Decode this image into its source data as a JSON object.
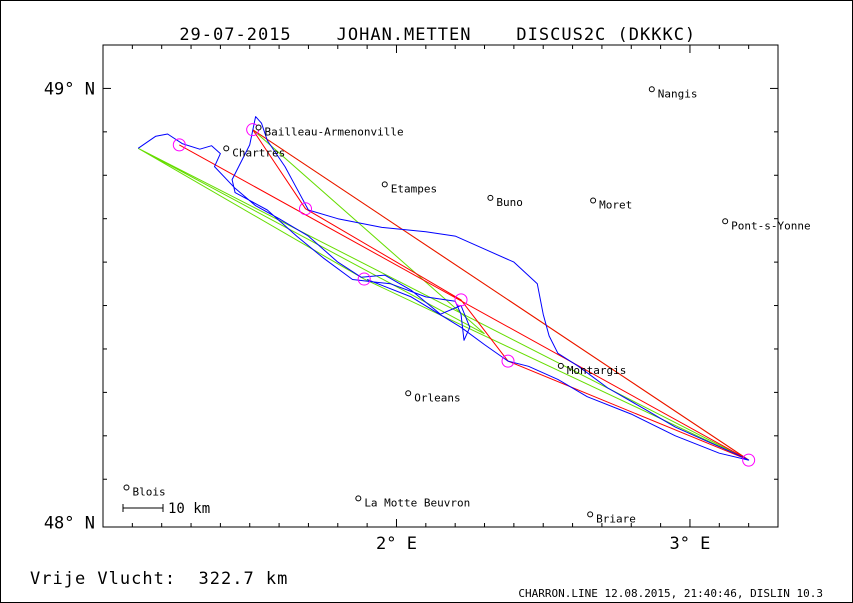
{
  "header": {
    "date": "29-07-2015",
    "pilot": "JOHAN.METTEN",
    "glider": "DISCUS2C (DKKKC)"
  },
  "footer": {
    "result": "Vrije Vlucht:  322.7 km",
    "software": "CHARRON.LINE 12.08.2015, 21:40:46, DISLIN 10.3"
  },
  "axes": {
    "lat_labels": [
      {
        "value": 49,
        "text": "49° N"
      },
      {
        "value": 48,
        "text": "48° N"
      }
    ],
    "lon_labels": [
      {
        "value": 2,
        "text": "2° E"
      },
      {
        "value": 3,
        "text": "3° E"
      }
    ],
    "lon_range": [
      1.0,
      3.3
    ],
    "lat_range": [
      47.99,
      49.1
    ]
  },
  "scale_bar": {
    "label": "10 km"
  },
  "towns": [
    {
      "name": "Nangis",
      "lon": 2.87,
      "lat": 48.998
    },
    {
      "name": "Bailleau-Armenonville",
      "lon": 1.53,
      "lat": 48.91
    },
    {
      "name": "Chartres",
      "lon": 1.42,
      "lat": 48.862
    },
    {
      "name": "Etampes",
      "lon": 1.96,
      "lat": 48.779
    },
    {
      "name": "Buno",
      "lon": 2.32,
      "lat": 48.748
    },
    {
      "name": "Moret",
      "lon": 2.67,
      "lat": 48.742
    },
    {
      "name": "Pont-s-Yonne",
      "lon": 3.12,
      "lat": 48.694
    },
    {
      "name": "Montargis",
      "lon": 2.56,
      "lat": 48.361
    },
    {
      "name": "Orleans",
      "lon": 2.04,
      "lat": 48.298
    },
    {
      "name": "Blois",
      "lon": 1.08,
      "lat": 48.081
    },
    {
      "name": "La Motte Beuvron",
      "lon": 1.87,
      "lat": 48.056
    },
    {
      "name": "Briare",
      "lon": 2.66,
      "lat": 48.019
    }
  ],
  "turnpoints": [
    {
      "lon": 1.26,
      "lat": 48.87
    },
    {
      "lon": 1.51,
      "lat": 48.905
    },
    {
      "lon": 1.69,
      "lat": 48.723
    },
    {
      "lon": 1.89,
      "lat": 48.561
    },
    {
      "lon": 2.22,
      "lat": 48.513
    },
    {
      "lon": 2.38,
      "lat": 48.372
    },
    {
      "lon": 3.2,
      "lat": 48.144
    }
  ],
  "task_red": [
    {
      "lon": 1.26,
      "lat": 48.87
    },
    {
      "lon": 3.2,
      "lat": 48.144
    },
    {
      "lon": 1.51,
      "lat": 48.905
    },
    {
      "lon": 1.69,
      "lat": 48.723
    },
    {
      "lon": 2.22,
      "lat": 48.513
    },
    {
      "lon": 2.38,
      "lat": 48.372
    },
    {
      "lon": 3.2,
      "lat": 48.144
    }
  ],
  "task_green": [
    {
      "lon": 1.12,
      "lat": 48.862
    },
    {
      "lon": 1.89,
      "lat": 48.561
    },
    {
      "lon": 3.2,
      "lat": 48.144
    },
    {
      "lon": 1.51,
      "lat": 48.905
    },
    {
      "lon": 2.3,
      "lat": 48.435
    },
    {
      "lon": 1.12,
      "lat": 48.862
    },
    {
      "lon": 3.2,
      "lat": 48.144
    }
  ],
  "track": [
    {
      "lon": 1.12,
      "lat": 48.862
    },
    {
      "lon": 1.18,
      "lat": 48.89
    },
    {
      "lon": 1.22,
      "lat": 48.895
    },
    {
      "lon": 1.27,
      "lat": 48.873
    },
    {
      "lon": 1.33,
      "lat": 48.86
    },
    {
      "lon": 1.37,
      "lat": 48.868
    },
    {
      "lon": 1.4,
      "lat": 48.85
    },
    {
      "lon": 1.38,
      "lat": 48.82
    },
    {
      "lon": 1.45,
      "lat": 48.77
    },
    {
      "lon": 1.52,
      "lat": 48.73
    },
    {
      "lon": 1.6,
      "lat": 48.7
    },
    {
      "lon": 1.7,
      "lat": 48.66
    },
    {
      "lon": 1.8,
      "lat": 48.6
    },
    {
      "lon": 1.88,
      "lat": 48.565
    },
    {
      "lon": 1.96,
      "lat": 48.57
    },
    {
      "lon": 2.05,
      "lat": 48.535
    },
    {
      "lon": 2.15,
      "lat": 48.48
    },
    {
      "lon": 2.22,
      "lat": 48.5
    },
    {
      "lon": 2.25,
      "lat": 48.45
    },
    {
      "lon": 2.23,
      "lat": 48.42
    },
    {
      "lon": 2.22,
      "lat": 48.48
    },
    {
      "lon": 2.2,
      "lat": 48.51
    },
    {
      "lon": 2.1,
      "lat": 48.52
    },
    {
      "lon": 1.98,
      "lat": 48.55
    },
    {
      "lon": 1.85,
      "lat": 48.56
    },
    {
      "lon": 1.75,
      "lat": 48.61
    },
    {
      "lon": 1.66,
      "lat": 48.66
    },
    {
      "lon": 1.56,
      "lat": 48.72
    },
    {
      "lon": 1.45,
      "lat": 48.76
    },
    {
      "lon": 1.44,
      "lat": 48.79
    },
    {
      "lon": 1.5,
      "lat": 48.87
    },
    {
      "lon": 1.52,
      "lat": 48.935
    },
    {
      "lon": 1.54,
      "lat": 48.92
    },
    {
      "lon": 1.56,
      "lat": 48.88
    },
    {
      "lon": 1.62,
      "lat": 48.82
    },
    {
      "lon": 1.66,
      "lat": 48.77
    },
    {
      "lon": 1.7,
      "lat": 48.72
    },
    {
      "lon": 1.8,
      "lat": 48.7
    },
    {
      "lon": 1.95,
      "lat": 48.68
    },
    {
      "lon": 2.1,
      "lat": 48.67
    },
    {
      "lon": 2.2,
      "lat": 48.66
    },
    {
      "lon": 2.3,
      "lat": 48.63
    },
    {
      "lon": 2.4,
      "lat": 48.6
    },
    {
      "lon": 2.48,
      "lat": 48.55
    },
    {
      "lon": 2.5,
      "lat": 48.48
    },
    {
      "lon": 2.52,
      "lat": 48.43
    },
    {
      "lon": 2.55,
      "lat": 48.39
    },
    {
      "lon": 2.62,
      "lat": 48.36
    },
    {
      "lon": 2.72,
      "lat": 48.31
    },
    {
      "lon": 2.85,
      "lat": 48.26
    },
    {
      "lon": 2.95,
      "lat": 48.22
    },
    {
      "lon": 3.05,
      "lat": 48.19
    },
    {
      "lon": 3.15,
      "lat": 48.16
    },
    {
      "lon": 3.2,
      "lat": 48.144
    },
    {
      "lon": 3.1,
      "lat": 48.16
    },
    {
      "lon": 2.95,
      "lat": 48.2
    },
    {
      "lon": 2.8,
      "lat": 48.25
    },
    {
      "lon": 2.65,
      "lat": 48.29
    },
    {
      "lon": 2.55,
      "lat": 48.33
    },
    {
      "lon": 2.45,
      "lat": 48.36
    },
    {
      "lon": 2.38,
      "lat": 48.372
    },
    {
      "lon": 2.3,
      "lat": 48.41
    },
    {
      "lon": 2.22,
      "lat": 48.45
    },
    {
      "lon": 2.05,
      "lat": 48.52
    },
    {
      "lon": 1.9,
      "lat": 48.56
    }
  ],
  "colors": {
    "track": "#0000ff",
    "task_red": "#ff0000",
    "task_green": "#66dd00",
    "turnpoint": "#ff00ff",
    "text": "#000000"
  }
}
